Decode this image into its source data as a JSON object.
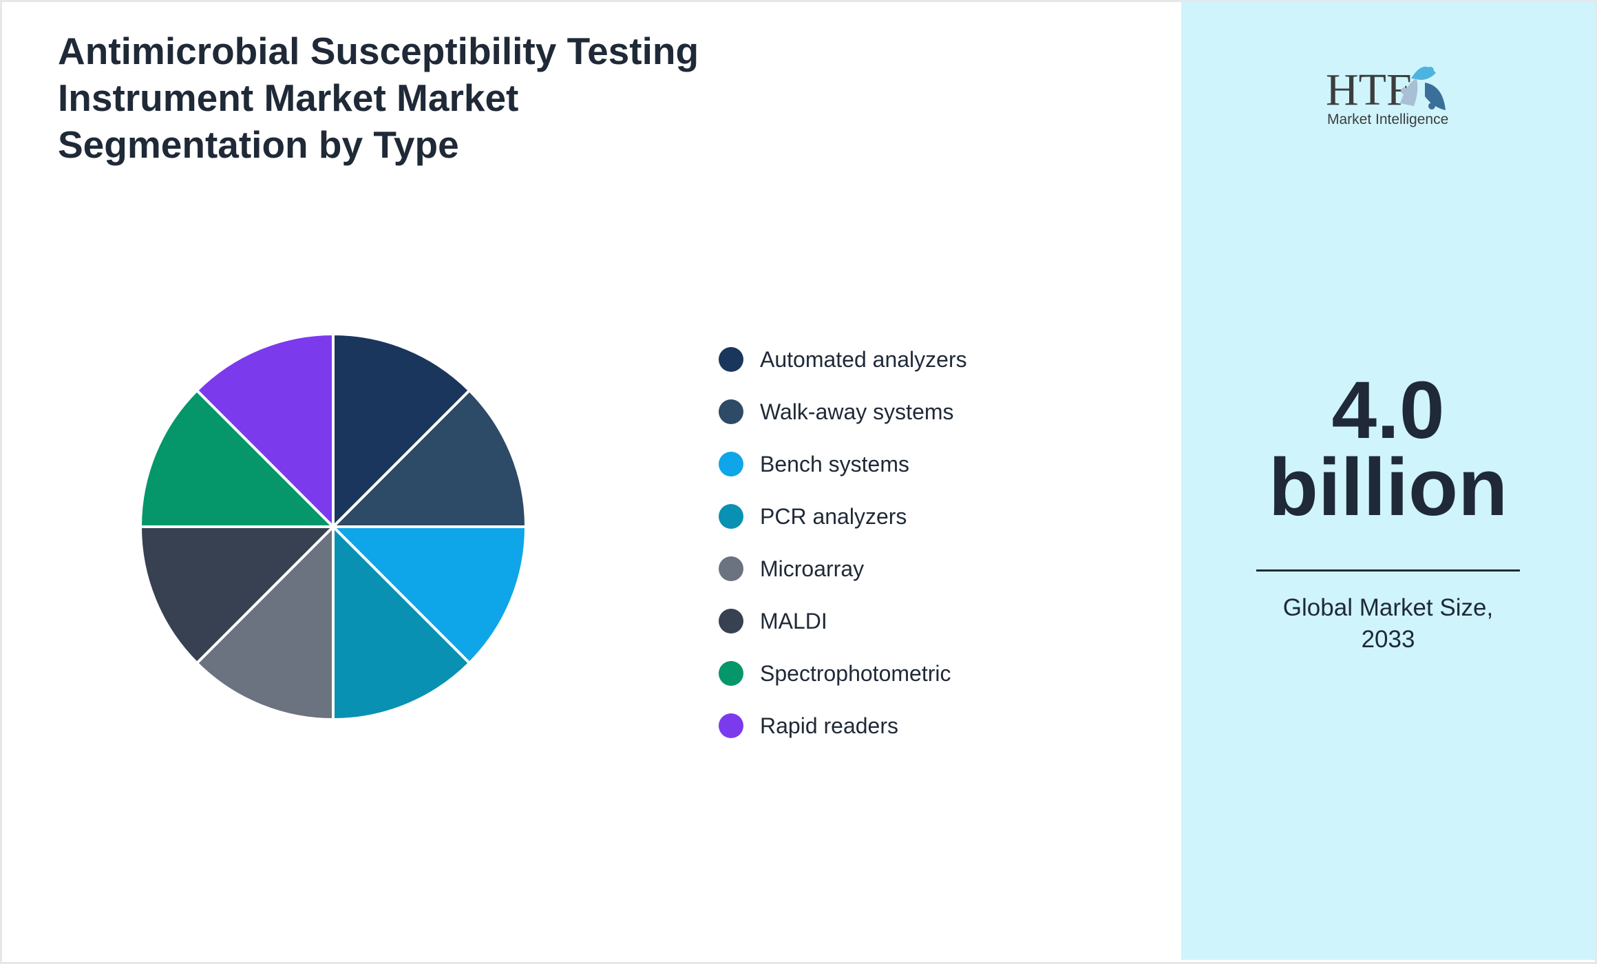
{
  "chart_data": {
    "type": "pie",
    "title": "Antimicrobial Susceptibility Testing Instrument Market Market Segmentation by Type",
    "legend_position": "right",
    "slices": [
      {
        "label": "Automated analyzers",
        "value": 12.5,
        "color": "#1b365d"
      },
      {
        "label": "Walk-away systems",
        "value": 12.5,
        "color": "#2d4a66"
      },
      {
        "label": "Bench systems",
        "value": 12.5,
        "color": "#0ea5e9"
      },
      {
        "label": "PCR analyzers",
        "value": 12.5,
        "color": "#0891b2"
      },
      {
        "label": "Microarray",
        "value": 12.5,
        "color": "#6b7280"
      },
      {
        "label": "MALDI",
        "value": 12.5,
        "color": "#374151"
      },
      {
        "label": "Spectrophotometric",
        "value": 12.5,
        "color": "#059669"
      },
      {
        "label": "Rapid readers",
        "value": 12.5,
        "color": "#7c3aed"
      }
    ]
  },
  "side": {
    "logo_text": "HTF",
    "logo_subtext": "Market Intelligence",
    "value_line1": "4.0",
    "value_line2": "billion",
    "caption_line1": "Global Market Size,",
    "caption_line2": "2033",
    "background": "#cff4fc"
  }
}
